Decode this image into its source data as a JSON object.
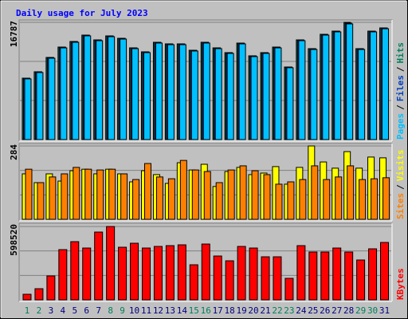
{
  "title": "Daily usage for July 2023",
  "legend_separator": "/",
  "chart_data": [
    {
      "type": "bar",
      "ylim": [
        0,
        16787
      ],
      "yticks": [
        16787
      ],
      "series": [
        {
          "name": "Hits",
          "color": "#00805c",
          "values": [
            8793,
            9707,
            11762,
            13247,
            14046,
            14960,
            14274,
            14846,
            14503,
            13133,
            12562,
            13932,
            13704,
            13704,
            12790,
            13932,
            13133,
            12448,
            13818,
            11991,
            12448,
            13247,
            10392,
            14274,
            13019,
            15074,
            15531,
            16787,
            13019,
            15531,
            15988
          ]
        },
        {
          "name": "Files",
          "color": "#0040c0",
          "values": [
            8793,
            9707,
            11762,
            13247,
            14046,
            14960,
            14274,
            14846,
            14503,
            13133,
            12562,
            13932,
            13704,
            13704,
            12790,
            13932,
            13133,
            12448,
            13818,
            11991,
            12448,
            13247,
            10392,
            14274,
            13019,
            15074,
            15531,
            16673,
            13019,
            15531,
            15988
          ]
        },
        {
          "name": "Pages",
          "color": "#00c0ff",
          "values": [
            8690,
            9600,
            11650,
            13130,
            13930,
            14850,
            14160,
            14730,
            14390,
            13020,
            12450,
            13820,
            13590,
            13590,
            12680,
            13820,
            13020,
            12340,
            13700,
            11880,
            12340,
            13130,
            10290,
            14160,
            12900,
            14960,
            15420,
            16560,
            12900,
            15420,
            15870
          ]
        }
      ]
    },
    {
      "type": "bar",
      "ylim": [
        0,
        284
      ],
      "yticks": [
        284
      ],
      "series": [
        {
          "name": "Visits",
          "color": "#ffff00",
          "values": [
            176,
            142,
            176,
            148,
            188,
            194,
            176,
            194,
            176,
            145,
            188,
            173,
            139,
            219,
            191,
            213,
            127,
            185,
            201,
            173,
            179,
            204,
            136,
            201,
            284,
            222,
            198,
            262,
            198,
            241,
            238
          ]
        },
        {
          "name": "Sites",
          "color": "#ff8000",
          "values": [
            194,
            142,
            164,
            176,
            201,
            194,
            191,
            194,
            176,
            154,
            216,
            164,
            157,
            228,
            191,
            185,
            142,
            191,
            207,
            188,
            173,
            136,
            145,
            154,
            207,
            154,
            164,
            207,
            154,
            157,
            161
          ]
        }
      ]
    },
    {
      "type": "bar",
      "ylim": [
        0,
        598520
      ],
      "yticks": [
        598520
      ],
      "categories": [
        "1",
        "2",
        "3",
        "4",
        "5",
        "6",
        "7",
        "8",
        "9",
        "10",
        "11",
        "12",
        "13",
        "14",
        "15",
        "16",
        "17",
        "18",
        "19",
        "20",
        "21",
        "22",
        "23",
        "24",
        "25",
        "26",
        "27",
        "28",
        "29",
        "30",
        "31"
      ],
      "category_colors": [
        "#00805c",
        "#00805c",
        "#000080",
        "#000080",
        "#000080",
        "#000080",
        "#000080",
        "#00805c",
        "#00805c",
        "#000080",
        "#000080",
        "#000080",
        "#000080",
        "#000080",
        "#00805c",
        "#00805c",
        "#000080",
        "#000080",
        "#000080",
        "#000080",
        "#000080",
        "#00805c",
        "#00805c",
        "#000080",
        "#000080",
        "#000080",
        "#000080",
        "#000080",
        "#00805c",
        "#00805c",
        "#000080"
      ],
      "series": [
        {
          "name": "KBytes",
          "color": "#ff0000",
          "values": [
            45540,
            91080,
            195180,
            409870,
            474930,
            422880,
            553000,
            598520,
            429390,
            461910,
            422880,
            435890,
            442400,
            448910,
            286250,
            455400,
            357810,
            318780,
            435890,
            422880,
            351310,
            351310,
            175650,
            442400,
            390350,
            390350,
            422880,
            390350,
            325290,
            416370,
            468420
          ]
        }
      ]
    }
  ]
}
